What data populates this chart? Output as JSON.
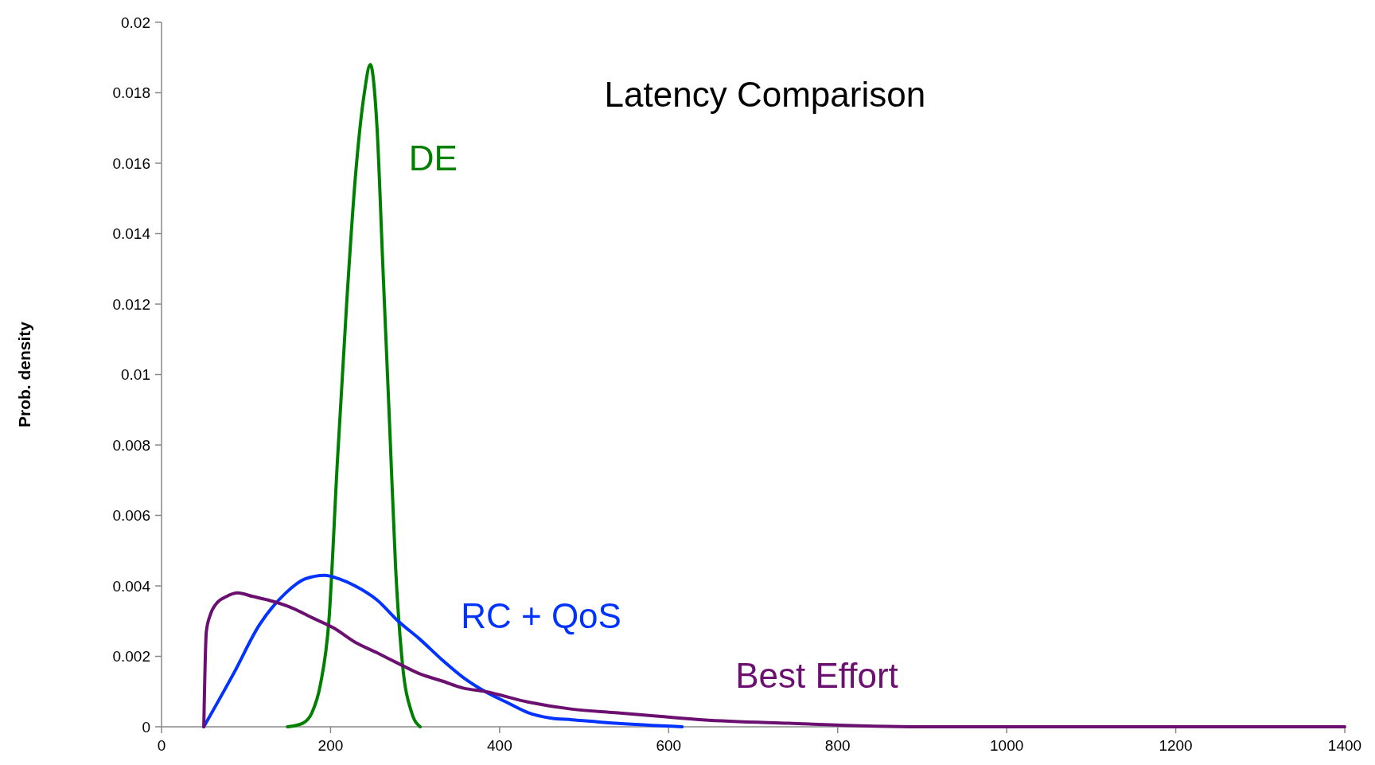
{
  "chart_data": {
    "type": "line",
    "title": "Latency Comparison",
    "ylabel": "Prob. density",
    "xlim": [
      0,
      1400
    ],
    "xticks": [
      0,
      200,
      400,
      600,
      800,
      1000,
      1200,
      1400
    ],
    "ylim": [
      0,
      0.02
    ],
    "yticks": [
      0,
      0.002,
      0.004,
      0.006,
      0.008,
      0.01,
      0.012,
      0.014,
      0.016,
      0.018,
      0.02
    ],
    "grid": false,
    "line_style": "solid",
    "series": [
      {
        "name": "DE",
        "color": "#008000",
        "x": [
          149,
          167,
          178,
          188,
          198,
          208,
          219,
          229,
          240,
          247,
          255,
          262,
          270,
          277,
          285,
          296,
          306
        ],
        "values": [
          0,
          0.0001,
          0.0004,
          0.0012,
          0.003,
          0.0075,
          0.012,
          0.0155,
          0.018,
          0.0188,
          0.017,
          0.013,
          0.0085,
          0.0045,
          0.0018,
          0.0004,
          0
        ]
      },
      {
        "name": "RC + QoS",
        "color": "#0033ff",
        "x": [
          50,
          85,
          116,
          147,
          170,
          193,
          210,
          229,
          255,
          280,
          305,
          332,
          357,
          383,
          408,
          434,
          460,
          486,
          537,
          616
        ],
        "values": [
          0,
          0.0015,
          0.0029,
          0.0038,
          0.0042,
          0.0043,
          0.0042,
          0.004,
          0.0036,
          0.003,
          0.0025,
          0.0019,
          0.0014,
          0.001,
          0.0007,
          0.0004,
          0.00025,
          0.0002,
          0.0001,
          0
        ]
      },
      {
        "name": "Best Effort",
        "color": "#6b1070",
        "x": [
          50,
          53,
          58,
          65,
          77,
          90,
          108,
          126,
          152,
          178,
          204,
          229,
          255,
          280,
          306,
          332,
          357,
          383,
          434,
          486,
          537,
          588,
          640,
          742,
          896,
          1102,
          1400
        ],
        "values": [
          0,
          0.0027,
          0.0032,
          0.0035,
          0.0037,
          0.0038,
          0.0037,
          0.0036,
          0.0034,
          0.0031,
          0.0028,
          0.0024,
          0.0021,
          0.0018,
          0.0015,
          0.0013,
          0.0011,
          0.001,
          0.0007,
          0.0005,
          0.0004,
          0.0003,
          0.0002,
          0.0001,
          0,
          0,
          0
        ]
      }
    ]
  }
}
